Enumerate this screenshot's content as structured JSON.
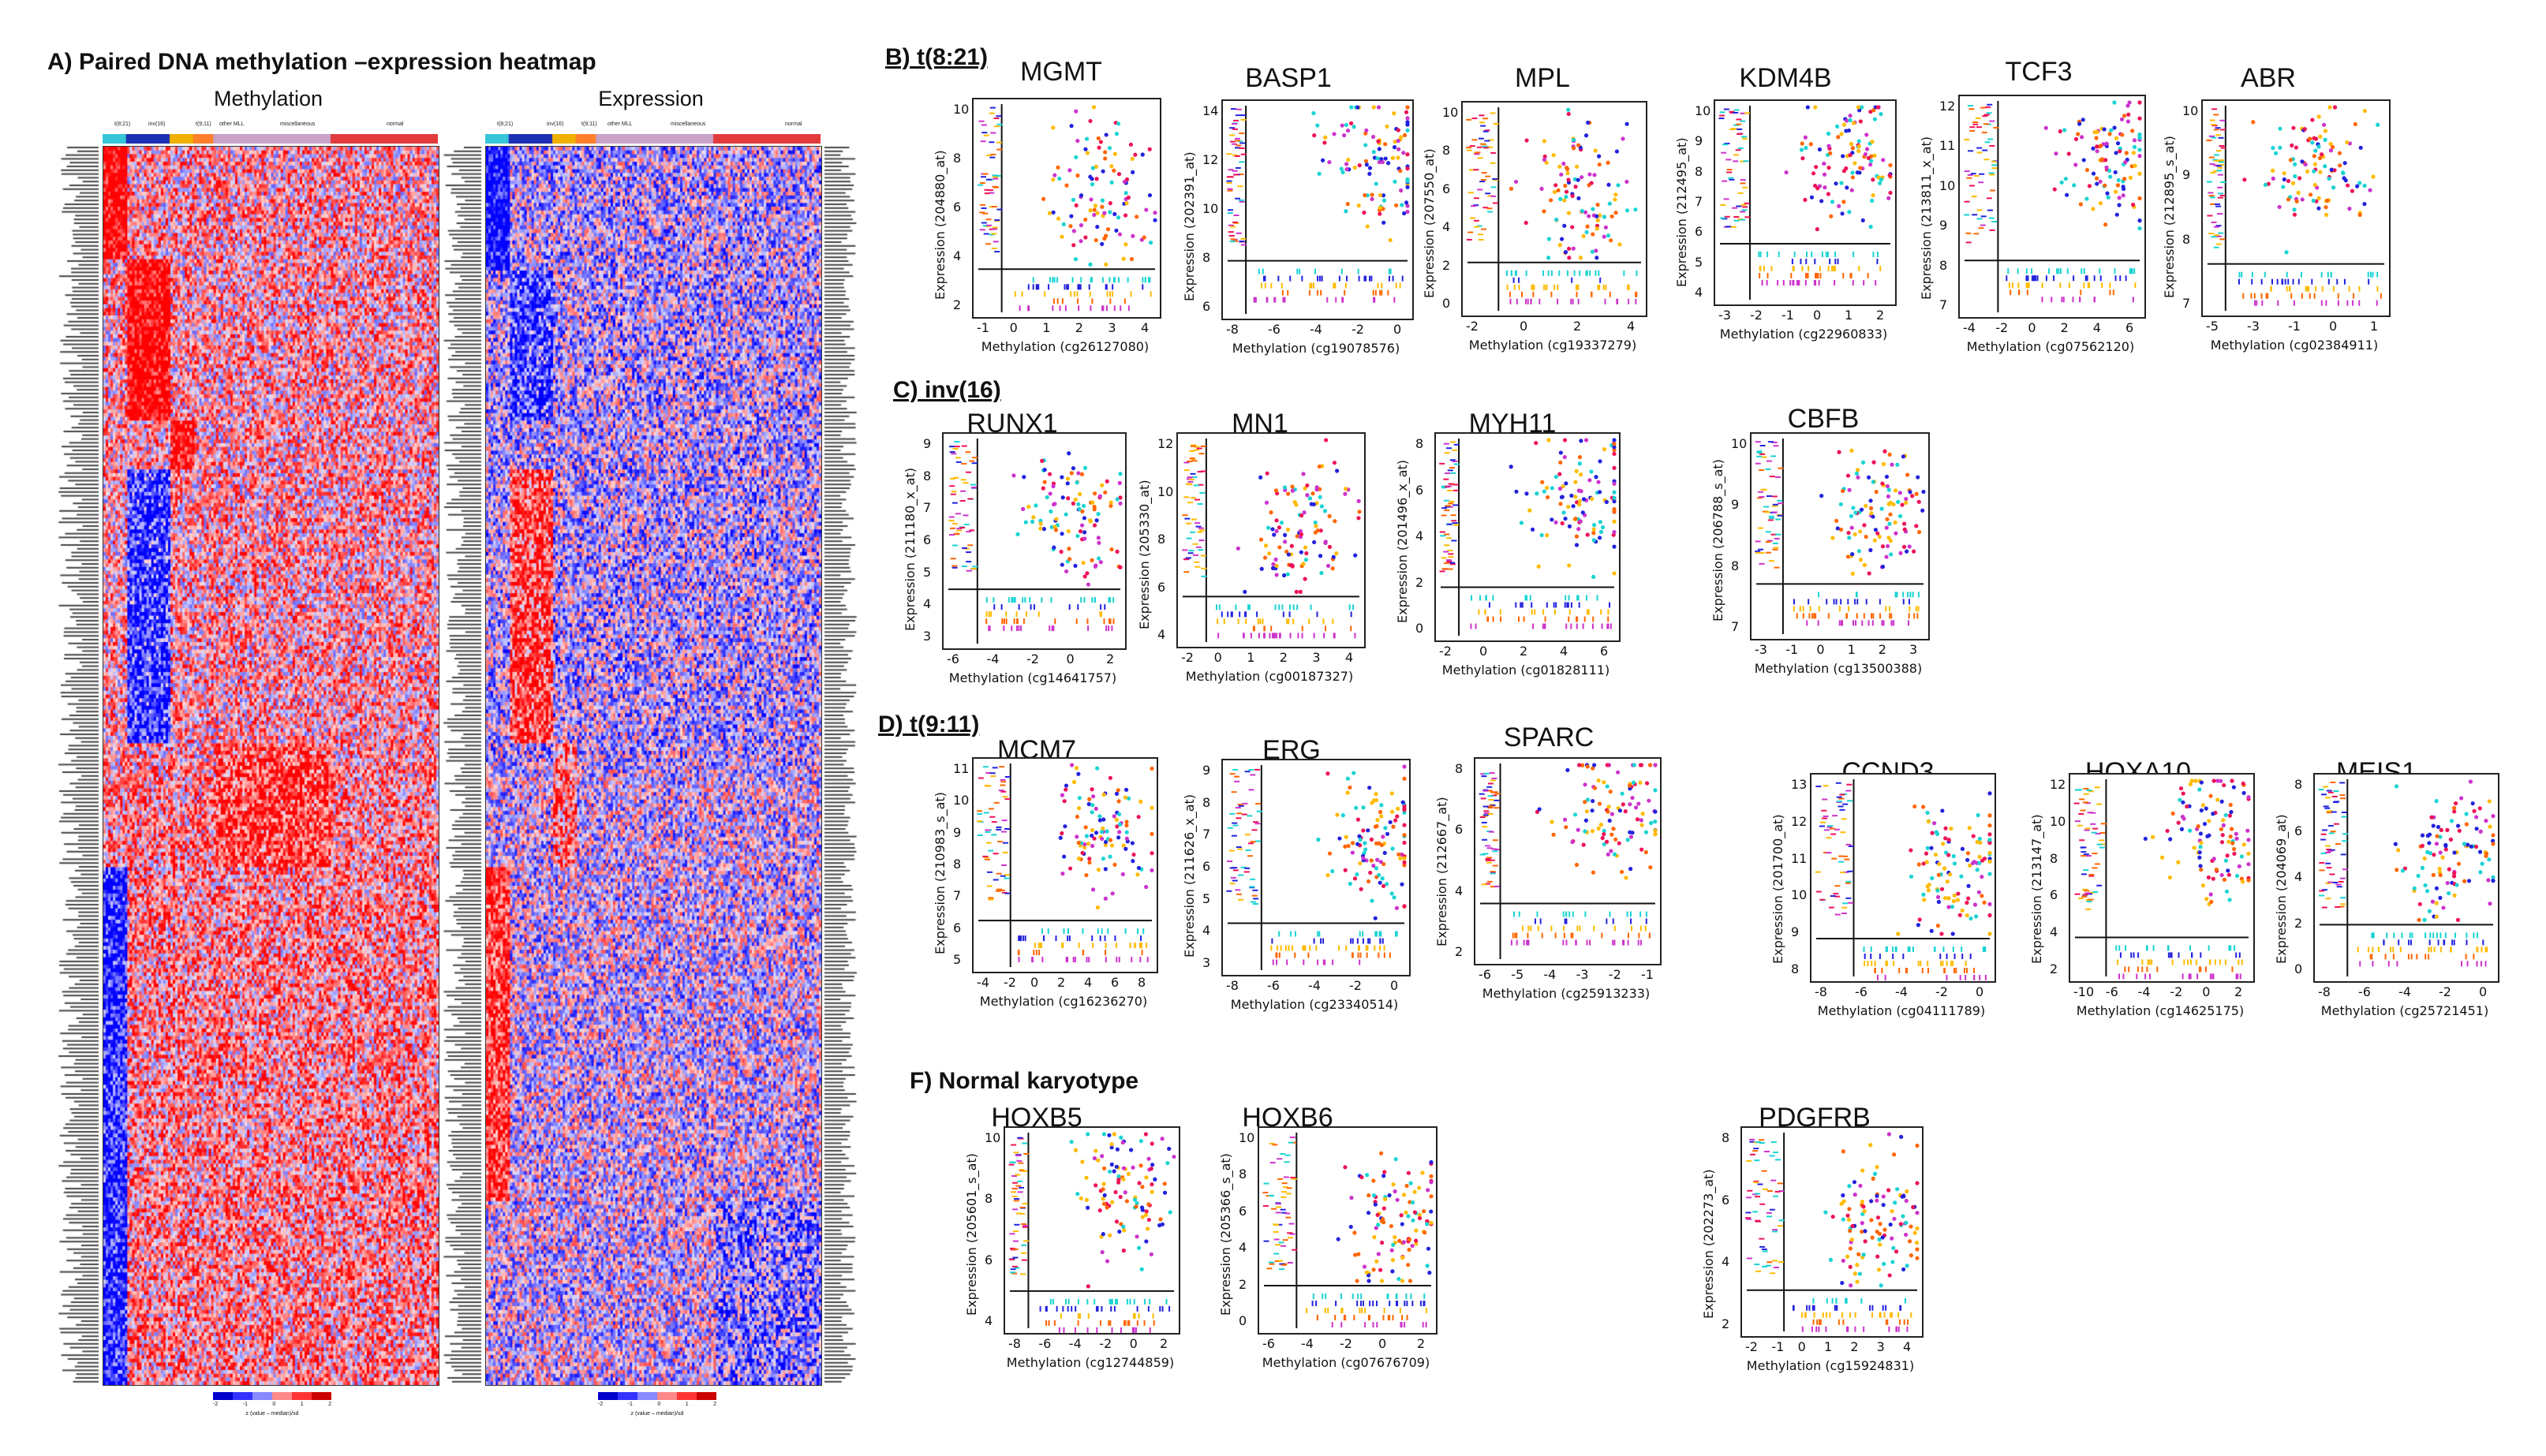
{
  "panel_a": {
    "title": "A) Paired DNA methylation –expression heatmap",
    "left_label": "Methylation",
    "right_label": "Expression",
    "group_labels": [
      "t(8;21)",
      "inv(16)",
      "t(9;11)",
      "other MLL",
      "miscellaneous",
      "normal"
    ],
    "group_colors": [
      "#36c6d9",
      "#1d2fb3",
      "#f0b000",
      "#ff7f2a",
      "#c8a2c8",
      "#e23b3b"
    ],
    "legend_ticks_left": [
      "-2",
      "-1",
      "0",
      "1",
      "2"
    ],
    "legend_ticks_right": [
      "-2",
      "-1",
      "0",
      "1",
      "2"
    ],
    "legend_caption_left": "z (value – median)/sd",
    "legend_caption_right": "z (value – median)/sd",
    "colors": {
      "low": "#1a1aff",
      "high": "#ff1a1a"
    }
  },
  "panel_b": {
    "title": "B) t(8:21)"
  },
  "panel_c": {
    "title": "C) inv(16)"
  },
  "panel_d": {
    "title": "D) t(9:11)"
  },
  "panel_f": {
    "title": "F) Normal karyotype"
  },
  "plots": [
    {
      "gene": "MGMT",
      "ylabel": "Expression (204880_at)",
      "xlabel": "Methylation (cg26127080)",
      "xticks": [
        "-1",
        "0",
        "1",
        "2",
        "3",
        "4"
      ],
      "yticks": [
        "2",
        "4",
        "6",
        "8",
        "10"
      ]
    },
    {
      "gene": "BASP1",
      "ylabel": "Expression (202391_at)",
      "xlabel": "Methylation (cg19078576)",
      "xticks": [
        "-8",
        "-6",
        "-4",
        "-2",
        "0"
      ],
      "yticks": [
        "6",
        "8",
        "10",
        "12",
        "14"
      ]
    },
    {
      "gene": "MPL",
      "ylabel": "Expression (207550_at)",
      "xlabel": "Methylation (cg19337279)",
      "xticks": [
        "-2",
        "0",
        "2",
        "4"
      ],
      "yticks": [
        "0",
        "2",
        "4",
        "6",
        "8",
        "10"
      ]
    },
    {
      "gene": "KDM4B",
      "ylabel": "Expression (212495_at)",
      "xlabel": "Methylation (cg22960833)",
      "xticks": [
        "-3",
        "-2",
        "-1",
        "0",
        "1",
        "2"
      ],
      "yticks": [
        "4",
        "5",
        "6",
        "7",
        "8",
        "9",
        "10"
      ]
    },
    {
      "gene": "TCF3",
      "ylabel": "Expression (213811_x_at)",
      "xlabel": "Methylation (cg07562120)",
      "xticks": [
        "-4",
        "-2",
        "0",
        "2",
        "4",
        "6"
      ],
      "yticks": [
        "7",
        "8",
        "9",
        "10",
        "11",
        "12"
      ]
    },
    {
      "gene": "ABR",
      "ylabel": "Expression (212895_s_at)",
      "xlabel": "Methylation (cg02384911)",
      "xticks": [
        "-5",
        "-3",
        "-1",
        "0",
        "1"
      ],
      "yticks": [
        "7",
        "8",
        "9",
        "10"
      ]
    },
    {
      "gene": "RUNX1",
      "ylabel": "Expression (211180_x_at)",
      "xlabel": "Methylation (cg14641757)",
      "xticks": [
        "-6",
        "-4",
        "-2",
        "0",
        "2"
      ],
      "yticks": [
        "3",
        "4",
        "5",
        "6",
        "7",
        "8",
        "9"
      ]
    },
    {
      "gene": "MN1",
      "ylabel": "Expression (205330_at)",
      "xlabel": "Methylation (cg00187327)",
      "xticks": [
        "-2",
        "0",
        "1",
        "2",
        "3",
        "4"
      ],
      "yticks": [
        "4",
        "6",
        "8",
        "10",
        "12"
      ]
    },
    {
      "gene": "MYH11",
      "ylabel": "Expression (201496_x_at)",
      "xlabel": "Methylation (cg01828111)",
      "xticks": [
        "-2",
        "0",
        "2",
        "4",
        "6"
      ],
      "yticks": [
        "0",
        "2",
        "4",
        "6",
        "8"
      ]
    },
    {
      "gene": "CBFB",
      "ylabel": "Expression (206788_s_at)",
      "xlabel": "Methylation (cg13500388)",
      "xticks": [
        "-3",
        "-1",
        "0",
        "1",
        "2",
        "3"
      ],
      "yticks": [
        "7",
        "8",
        "9",
        "10"
      ]
    },
    {
      "gene": "MCM7",
      "ylabel": "Expression (210983_s_at)",
      "xlabel": "Methylation (cg16236270)",
      "xticks": [
        "-4",
        "-2",
        "0",
        "2",
        "4",
        "6",
        "8"
      ],
      "yticks": [
        "5",
        "6",
        "7",
        "8",
        "9",
        "10",
        "11"
      ]
    },
    {
      "gene": "ERG",
      "ylabel": "Expression (211626_x_at)",
      "xlabel": "Methylation (cg23340514)",
      "xticks": [
        "-8",
        "-6",
        "-4",
        "-2",
        "0"
      ],
      "yticks": [
        "3",
        "4",
        "5",
        "6",
        "7",
        "8",
        "9"
      ]
    },
    {
      "gene": "SPARC",
      "ylabel": "Expression (212667_at)",
      "xlabel": "Methylation (cg25913233)",
      "xticks": [
        "-6",
        "-5",
        "-4",
        "-3",
        "-2",
        "-1"
      ],
      "yticks": [
        "2",
        "4",
        "6",
        "8"
      ]
    },
    {
      "gene": "CCND3",
      "ylabel": "Expression (201700_at)",
      "xlabel": "Methylation (cg04111789)",
      "xticks": [
        "-8",
        "-6",
        "-4",
        "-2",
        "0"
      ],
      "yticks": [
        "8",
        "9",
        "10",
        "11",
        "12",
        "13"
      ]
    },
    {
      "gene": "HOXA10",
      "ylabel": "Expression (213147_at)",
      "xlabel": "Methylation (cg14625175)",
      "xticks": [
        "-10",
        "-6",
        "-4",
        "-2",
        "0",
        "2"
      ],
      "yticks": [
        "2",
        "4",
        "6",
        "8",
        "10",
        "12"
      ]
    },
    {
      "gene": "MEIS1",
      "ylabel": "Expression (204069_at)",
      "xlabel": "Methylation (cg25721451)",
      "xticks": [
        "-8",
        "-6",
        "-4",
        "-2",
        "0"
      ],
      "yticks": [
        "0",
        "2",
        "4",
        "6",
        "8"
      ]
    },
    {
      "gene": "HOXB5",
      "ylabel": "Expression (205601_s_at)",
      "xlabel": "Methylation (cg12744859)",
      "xticks": [
        "-8",
        "-6",
        "-4",
        "-2",
        "0",
        "2"
      ],
      "yticks": [
        "4",
        "6",
        "8",
        "10"
      ]
    },
    {
      "gene": "HOXB6",
      "ylabel": "Expression (205366_s_at)",
      "xlabel": "Methylation (cg07676709)",
      "xticks": [
        "-6",
        "-4",
        "-2",
        "0",
        "2"
      ],
      "yticks": [
        "0",
        "2",
        "4",
        "6",
        "8",
        "10"
      ]
    },
    {
      "gene": "PDGFRB",
      "ylabel": "Expression (202273_at)",
      "xlabel": "Methylation (cg15924831)",
      "xticks": [
        "-2",
        "-1",
        "0",
        "1",
        "2",
        "3",
        "4"
      ],
      "yticks": [
        "2",
        "4",
        "6",
        "8"
      ]
    }
  ],
  "group_colors": [
    "#19d3d3",
    "#2222dd",
    "#ffbb00",
    "#ff6600",
    "#cc33cc",
    "#ee1155"
  ]
}
